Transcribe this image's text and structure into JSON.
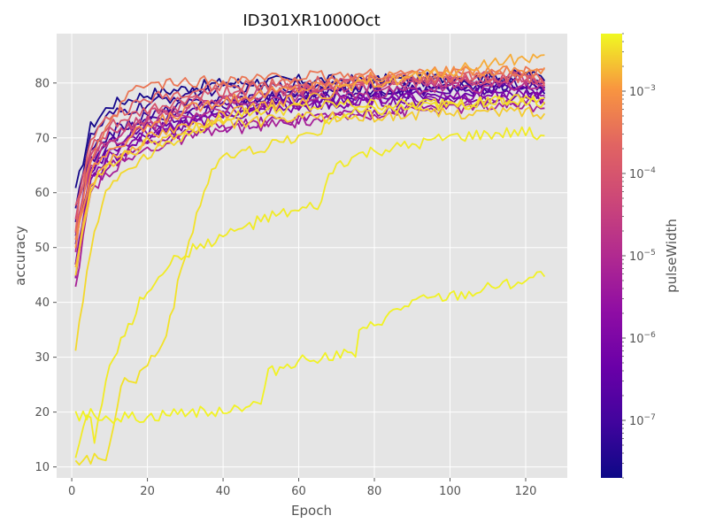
{
  "chart_data": {
    "type": "line",
    "title": "ID301XR1000Oct",
    "xlabel": "Epoch",
    "ylabel": "accuracy",
    "xlim": [
      -4,
      131
    ],
    "ylim": [
      8,
      89
    ],
    "x_ticks": [
      0,
      20,
      40,
      60,
      80,
      100,
      120
    ],
    "y_ticks": [
      10,
      20,
      30,
      40,
      50,
      60,
      70,
      80
    ],
    "grid": true,
    "style": "ggplot",
    "colorbar": {
      "label": "pulseWidth",
      "scale": "log",
      "colormap": "plasma",
      "range": [
        2e-08,
        0.005
      ],
      "ticks": [
        {
          "value": 1e-07,
          "base": "10",
          "exp": "−7"
        },
        {
          "value": 1e-06,
          "base": "10",
          "exp": "−6"
        },
        {
          "value": 1e-05,
          "base": "10",
          "exp": "−5"
        },
        {
          "value": 0.0001,
          "base": "10",
          "exp": "−4"
        },
        {
          "value": 0.001,
          "base": "10",
          "exp": "−3"
        }
      ]
    },
    "series": [
      {
        "color_value": 2.5e-08,
        "x": [
          1,
          5,
          10,
          20,
          30,
          40,
          60,
          80,
          100,
          110,
          120,
          125
        ],
        "y": [
          60,
          72,
          76,
          78,
          79,
          80,
          80.5,
          80.5,
          81,
          81,
          81.5,
          81
        ]
      },
      {
        "color_value": 4e-08,
        "x": [
          1,
          5,
          10,
          20,
          30,
          40,
          60,
          80,
          100,
          120,
          125
        ],
        "y": [
          58,
          70,
          74,
          76,
          78,
          79,
          79.5,
          80,
          80.5,
          81,
          80
        ]
      },
      {
        "color_value": 6e-08,
        "x": [
          1,
          5,
          10,
          20,
          30,
          40,
          60,
          80,
          100,
          120,
          125
        ],
        "y": [
          55,
          67,
          71,
          74,
          76,
          77,
          78,
          79,
          79,
          80,
          79
        ]
      },
      {
        "color_value": 1e-07,
        "x": [
          1,
          5,
          10,
          20,
          30,
          40,
          60,
          80,
          100,
          120,
          125
        ],
        "y": [
          52,
          66,
          70,
          73,
          75,
          76,
          77.5,
          78.5,
          79,
          79.5,
          79
        ]
      },
      {
        "color_value": 2e-07,
        "x": [
          1,
          5,
          10,
          20,
          30,
          40,
          60,
          80,
          100,
          120,
          125
        ],
        "y": [
          50,
          64,
          69,
          72,
          74,
          75.5,
          77,
          78,
          78.5,
          79,
          78.5
        ]
      },
      {
        "color_value": 4e-07,
        "x": [
          1,
          5,
          10,
          20,
          30,
          40,
          60,
          80,
          100,
          120,
          125
        ],
        "y": [
          48,
          63,
          68,
          71,
          73,
          74.5,
          76,
          77,
          78,
          78.5,
          78
        ]
      },
      {
        "color_value": 8e-07,
        "x": [
          1,
          5,
          10,
          20,
          30,
          40,
          60,
          80,
          100,
          120,
          125
        ],
        "y": [
          45,
          62,
          66,
          70,
          72,
          74,
          75.5,
          76.5,
          77,
          77.5,
          77
        ]
      },
      {
        "color_value": 1.5e-06,
        "x": [
          1,
          5,
          10,
          20,
          30,
          40,
          60,
          80,
          100,
          120,
          125
        ],
        "y": [
          47,
          63,
          67,
          71,
          73,
          75,
          76,
          77,
          77.5,
          78,
          77.5
        ]
      },
      {
        "color_value": 3e-06,
        "x": [
          1,
          5,
          10,
          20,
          30,
          40,
          60,
          80,
          100,
          120,
          125
        ],
        "y": [
          44,
          61,
          65,
          69,
          71,
          72,
          73.5,
          75,
          76,
          76.5,
          76
        ]
      },
      {
        "color_value": 6e-06,
        "x": [
          1,
          5,
          10,
          20,
          30,
          40,
          60,
          80,
          100,
          120,
          125
        ],
        "y": [
          42,
          60,
          64,
          68,
          70,
          71.5,
          73,
          74.5,
          75.5,
          76,
          75.5
        ]
      },
      {
        "color_value": 1.2e-05,
        "x": [
          1,
          5,
          10,
          20,
          30,
          40,
          60,
          80,
          100,
          120,
          125
        ],
        "y": [
          50,
          65,
          69,
          72,
          74,
          75.5,
          77,
          78,
          79,
          79.5,
          79
        ]
      },
      {
        "color_value": 2.5e-05,
        "x": [
          1,
          5,
          10,
          20,
          30,
          40,
          60,
          80,
          100,
          120,
          125
        ],
        "y": [
          53,
          66,
          70,
          73,
          75,
          77,
          78.5,
          79.5,
          80,
          80.5,
          80
        ]
      },
      {
        "color_value": 5e-05,
        "x": [
          1,
          5,
          10,
          20,
          30,
          40,
          60,
          80,
          100,
          120,
          125
        ],
        "y": [
          55,
          67,
          71,
          74,
          76,
          77.5,
          79,
          80,
          80.5,
          81,
          80.5
        ]
      },
      {
        "color_value": 0.0001,
        "x": [
          1,
          5,
          10,
          20,
          30,
          40,
          60,
          80,
          100,
          120,
          125
        ],
        "y": [
          57,
          68,
          72,
          75,
          77,
          78.5,
          79.5,
          80.5,
          81,
          81.5,
          81
        ]
      },
      {
        "color_value": 0.0002,
        "x": [
          1,
          5,
          10,
          20,
          30,
          40,
          60,
          80,
          100,
          120,
          125
        ],
        "y": [
          54,
          70,
          74,
          77,
          78.5,
          79.5,
          80,
          80.5,
          81,
          81,
          80.5
        ]
      },
      {
        "color_value": 0.0004,
        "x": [
          1,
          5,
          10,
          15,
          20,
          30,
          40,
          60,
          80,
          100,
          120,
          125
        ],
        "y": [
          52,
          66,
          72,
          78,
          79.5,
          80,
          80.5,
          81,
          81.5,
          82,
          82,
          81.5
        ]
      },
      {
        "color_value": 0.0008,
        "x": [
          1,
          5,
          10,
          20,
          30,
          40,
          60,
          80,
          100,
          120,
          125
        ],
        "y": [
          50,
          64,
          68,
          72,
          75,
          77,
          79,
          81,
          82,
          82.5,
          82
        ]
      },
      {
        "color_value": 0.0015,
        "x": [
          1,
          5,
          10,
          20,
          30,
          40,
          60,
          80,
          100,
          110,
          120,
          125
        ],
        "y": [
          46,
          62,
          66,
          70,
          72,
          74,
          77,
          80,
          82,
          83.5,
          84.5,
          84.5
        ]
      },
      {
        "color_value": 0.0025,
        "x": [
          1,
          5,
          10,
          20,
          30,
          40,
          60,
          80,
          100,
          120,
          125
        ],
        "y": [
          44,
          61,
          65,
          69,
          71,
          72.5,
          73.5,
          74,
          74.5,
          75,
          74
        ]
      },
      {
        "color_value": 0.003,
        "x": [
          1,
          5,
          8,
          10,
          14,
          18,
          22,
          26,
          30,
          34,
          38,
          42,
          46,
          50,
          55,
          60,
          65,
          70,
          75,
          80,
          85,
          90,
          100,
          110,
          120,
          125
        ],
        "y": [
          32,
          50,
          58,
          61,
          64,
          66,
          68,
          69,
          71,
          72,
          73,
          74,
          74.5,
          75,
          75,
          75.5,
          75.5,
          76,
          76,
          76,
          76,
          76,
          76.5,
          76.5,
          77,
          77
        ]
      },
      {
        "color_value": 0.0035,
        "x": [
          1,
          3,
          5,
          7,
          9,
          11,
          13,
          15,
          17,
          19,
          21,
          23,
          25,
          27,
          29,
          31,
          33,
          35,
          37,
          40,
          45,
          50,
          55,
          60,
          65,
          68,
          70,
          75,
          80,
          90,
          100,
          110,
          120,
          125
        ],
        "y": [
          11.5,
          11.5,
          11.5,
          11.5,
          12,
          18,
          24,
          26.5,
          26,
          28,
          30,
          31,
          35,
          40,
          46,
          51,
          56,
          60,
          64,
          66,
          67,
          68,
          69,
          70,
          71,
          73,
          74,
          74.5,
          75,
          75.5,
          76,
          76.5,
          77,
          76.5
        ]
      },
      {
        "color_value": 0.004,
        "x": [
          1,
          3,
          5,
          6,
          7,
          8,
          9,
          10,
          12,
          14,
          16,
          18,
          20,
          22,
          24,
          26,
          28,
          30,
          33,
          36,
          40,
          45,
          50,
          55,
          60,
          64,
          66,
          68,
          70,
          75,
          80,
          90,
          100,
          110,
          120,
          125
        ],
        "y": [
          11.5,
          17,
          20,
          15,
          18,
          22,
          26,
          28,
          31,
          34,
          37,
          40,
          42,
          44,
          46,
          47,
          48,
          49,
          50,
          51,
          52,
          53.5,
          55,
          56,
          56.5,
          57.5,
          58,
          63,
          65,
          66.5,
          67.5,
          68.5,
          70,
          70.5,
          71,
          70.5
        ]
      },
      {
        "color_value": 0.0045,
        "x": [
          1,
          5,
          10,
          15,
          20,
          25,
          30,
          35,
          40,
          45,
          50,
          52,
          55,
          60,
          65,
          70,
          75,
          76,
          78,
          80,
          85,
          90,
          95,
          100,
          105,
          110,
          115,
          120,
          125
        ],
        "y": [
          19.5,
          19.5,
          19,
          19,
          19,
          19.5,
          20,
          20,
          20.5,
          21,
          21.5,
          27,
          28,
          29.5,
          30,
          30.5,
          30.5,
          34,
          35,
          36,
          38,
          40,
          40.5,
          41,
          41.5,
          42.5,
          43.5,
          44,
          45
        ]
      }
    ]
  }
}
